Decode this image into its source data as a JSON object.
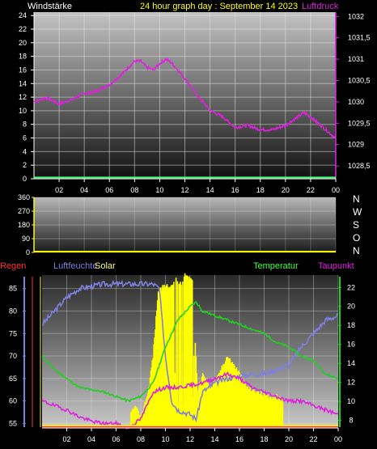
{
  "header": {
    "left_label": "Windstärke",
    "title": "24 hour graph day : September 14 2023",
    "right_label": "Luftdruck"
  },
  "wind_dir": {
    "compass": [
      "N",
      "W",
      "S",
      "O",
      "N"
    ]
  },
  "bottom_labels": {
    "regen": "Regen",
    "luftfeuchte": "Luftfeuchte",
    "solar": "Solar",
    "temperatur": "Temperatur",
    "taupunkt": "Taupunkt"
  },
  "colors": {
    "pressure": "#e020e0",
    "wind": "#40ff80",
    "yellow": "#ffff00",
    "humidity": "#8080e0",
    "temperature": "#20d020",
    "dewpoint": "#e020e0",
    "solar": "#ffff00",
    "rain": "#ff3030"
  },
  "chart_data": [
    {
      "type": "line",
      "title": "24 hour graph day : September 14 2023",
      "x_ticks": [
        "02",
        "04",
        "06",
        "08",
        "10",
        "12",
        "14",
        "16",
        "18",
        "20",
        "22",
        "00"
      ],
      "y_left_ticks": [
        "0",
        "2",
        "4",
        "6",
        "8",
        "10",
        "12",
        "14",
        "16",
        "18",
        "20",
        "22",
        "24"
      ],
      "y_right_ticks": [
        "1028,5",
        "1029",
        "1029,5",
        "1030",
        "1030,5",
        "1031",
        "1031,5",
        "1032"
      ],
      "ylim_left": [
        0,
        24.5
      ],
      "ylim_right": [
        1028.2,
        1032.1
      ],
      "series": [
        {
          "name": "Luftdruck",
          "axis": "right",
          "x": [
            0,
            1,
            2,
            3,
            4,
            5,
            6,
            7,
            8,
            8.5,
            9,
            9.5,
            10,
            10.5,
            11,
            12,
            13,
            14,
            15,
            16,
            17,
            18,
            19,
            20,
            20.5,
            21,
            21.5,
            22,
            23,
            24
          ],
          "y": [
            1030.0,
            1030.1,
            1029.95,
            1030.05,
            1030.2,
            1030.25,
            1030.4,
            1030.65,
            1030.95,
            1030.95,
            1030.8,
            1030.75,
            1030.9,
            1031.0,
            1030.9,
            1030.55,
            1030.15,
            1029.8,
            1029.65,
            1029.4,
            1029.45,
            1029.35,
            1029.35,
            1029.45,
            1029.55,
            1029.65,
            1029.75,
            1029.65,
            1029.4,
            1029.15
          ]
        },
        {
          "name": "Windstärke",
          "axis": "left",
          "x": [
            0,
            24
          ],
          "y": [
            0.2,
            0.2
          ]
        }
      ]
    },
    {
      "type": "line",
      "x_ticks": [
        "02",
        "04",
        "06",
        "08",
        "10",
        "12",
        "14",
        "16",
        "18",
        "20",
        "22",
        "00"
      ],
      "y_ticks": [
        "0",
        "90",
        "180",
        "270",
        "360"
      ],
      "ylim": [
        0,
        360
      ],
      "series": [
        {
          "name": "",
          "x": [
            0,
            24
          ],
          "y": [
            0,
            0
          ]
        }
      ]
    },
    {
      "type": "line",
      "x_ticks": [
        "02",
        "04",
        "06",
        "08",
        "10",
        "12",
        "14",
        "16",
        "18",
        "20",
        "22",
        "00"
      ],
      "y_left_ticks": [
        "55",
        "60",
        "65",
        "70",
        "75",
        "80",
        "85"
      ],
      "y_left_lim": [
        54,
        88
      ],
      "y_right_ticks": [
        "8",
        "10",
        "12",
        "14",
        "16",
        "18",
        "20",
        "22"
      ],
      "y_right_lim": [
        7.2,
        23.3
      ],
      "series": [
        {
          "name": "Luftfeuchte",
          "axis": "left",
          "x": [
            0,
            1,
            2,
            3,
            4,
            5,
            6,
            7,
            8,
            9,
            9.5,
            10,
            10.5,
            11,
            12,
            12.5,
            13,
            14,
            15,
            16,
            17,
            18,
            19,
            20,
            21,
            22,
            23,
            24
          ],
          "y": [
            77,
            80,
            83,
            85,
            85.5,
            86,
            86,
            86,
            86,
            86,
            85,
            70,
            60,
            58,
            57,
            56,
            62,
            64,
            65,
            65.5,
            66,
            66,
            67,
            68,
            72,
            75,
            78,
            79
          ]
        },
        {
          "name": "Temperatur",
          "axis": "left",
          "x": [
            0,
            1,
            2,
            3,
            4,
            5,
            6,
            7,
            8,
            9,
            10,
            11,
            12,
            12.5,
            13,
            14,
            15,
            16,
            17,
            18,
            19,
            20,
            21,
            22,
            23,
            24
          ],
          "y": [
            70,
            67,
            65,
            63,
            62.5,
            62,
            61,
            60,
            61,
            64,
            72,
            78,
            81,
            82,
            80,
            79,
            78,
            77,
            76,
            75,
            73,
            72,
            70,
            69,
            66,
            65
          ]
        },
        {
          "name": "Taupunkt",
          "axis": "left",
          "x": [
            0,
            1,
            2,
            3,
            4,
            5,
            6,
            7,
            8,
            9,
            10,
            11,
            12,
            13,
            14,
            15,
            16,
            17,
            18,
            19,
            20,
            21,
            22,
            23,
            24
          ],
          "y": [
            60,
            59,
            58,
            56.5,
            55.5,
            55,
            55,
            54,
            56,
            62,
            63,
            63,
            63.5,
            64,
            65,
            66,
            65,
            63,
            62,
            61,
            60,
            60,
            59,
            58,
            57
          ]
        },
        {
          "name": "Solar",
          "axis": "left",
          "x": [
            7.2,
            7.6,
            8.0,
            8.6,
            9.0,
            9.4,
            10.0,
            10.4,
            10.8,
            11.2,
            11.6,
            12.2,
            12.6,
            13.0,
            13.6,
            14.2,
            15.0,
            15.8,
            16.6,
            17.4,
            18.2,
            19.0,
            19.5
          ],
          "y": [
            57,
            59,
            56,
            62,
            70,
            84,
            86,
            85,
            87,
            86,
            88,
            87,
            62,
            66,
            63,
            65,
            70,
            67,
            63,
            62,
            61,
            61,
            60
          ]
        },
        {
          "name": "Regen",
          "axis": "left",
          "x": [
            0,
            24
          ],
          "y": [
            54.2,
            54.2
          ]
        }
      ]
    }
  ]
}
